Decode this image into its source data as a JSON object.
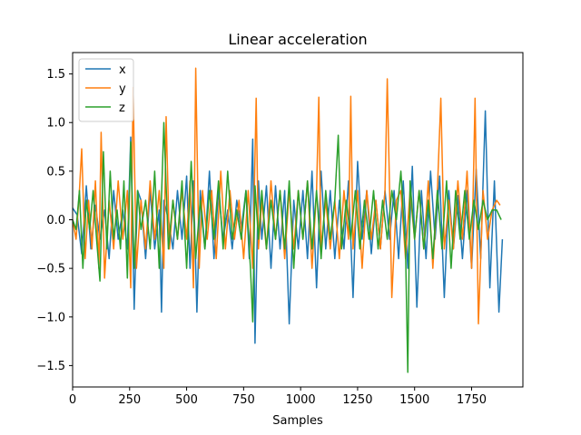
{
  "chart_data": {
    "type": "line",
    "title": "Linear acceleration",
    "xlabel": "Samples",
    "ylabel": "",
    "xlim": [
      0,
      1975
    ],
    "ylim": [
      -1.72,
      1.72
    ],
    "xticks": [
      0,
      250,
      500,
      750,
      1000,
      1250,
      1500,
      1750
    ],
    "yticks": [
      -1.5,
      -1.0,
      -0.5,
      0.0,
      0.5,
      1.0,
      1.5
    ],
    "xtick_labels": [
      "0",
      "250",
      "500",
      "750",
      "1000",
      "1250",
      "1500",
      "1750"
    ],
    "ytick_labels": [
      "−1.5",
      "−1.0",
      "−0.5",
      "0.0",
      "0.5",
      "1.0",
      "1.5"
    ],
    "grid": false,
    "legend_position": "upper left",
    "series": [
      {
        "name": "x",
        "color": "#1f77b4",
        "x": [
          0,
          20,
          40,
          60,
          80,
          100,
          120,
          140,
          160,
          180,
          200,
          220,
          240,
          255,
          270,
          285,
          300,
          320,
          340,
          360,
          380,
          390,
          400,
          420,
          440,
          460,
          480,
          500,
          515,
          530,
          545,
          560,
          580,
          600,
          620,
          640,
          660,
          680,
          700,
          720,
          740,
          760,
          775,
          790,
          800,
          815,
          830,
          850,
          870,
          890,
          910,
          930,
          950,
          970,
          990,
          1010,
          1030,
          1050,
          1070,
          1090,
          1110,
          1130,
          1150,
          1170,
          1190,
          1210,
          1230,
          1250,
          1270,
          1290,
          1310,
          1330,
          1350,
          1370,
          1390,
          1410,
          1430,
          1450,
          1470,
          1490,
          1510,
          1530,
          1550,
          1570,
          1590,
          1610,
          1630,
          1650,
          1670,
          1690,
          1710,
          1730,
          1750,
          1770,
          1790,
          1810,
          1830,
          1850,
          1870,
          1885
        ],
        "y": [
          0.12,
          0.05,
          -0.35,
          0.35,
          -0.3,
          0.15,
          -0.2,
          0.1,
          -0.4,
          0.3,
          -0.2,
          0.1,
          -0.3,
          0.85,
          -0.92,
          0.3,
          0.2,
          -0.4,
          0.3,
          -0.3,
          0.1,
          -0.95,
          0.2,
          0.0,
          -0.3,
          0.3,
          -0.2,
          0.45,
          -0.5,
          0.4,
          -0.95,
          0.3,
          -0.3,
          0.5,
          -0.4,
          0.3,
          -0.2,
          0.1,
          -0.3,
          0.2,
          -0.1,
          0.3,
          -0.4,
          0.83,
          -1.27,
          0.4,
          -0.2,
          0.35,
          -0.5,
          0.35,
          -0.3,
          0.3,
          -1.07,
          0.2,
          -0.3,
          0.3,
          -0.4,
          0.5,
          -0.7,
          0.5,
          -0.3,
          0.3,
          -0.4,
          0.2,
          -0.3,
          0.4,
          -0.8,
          0.6,
          -0.2,
          0.3,
          -0.35,
          0.2,
          -0.3,
          0.3,
          -0.2,
          0.3,
          -0.4,
          0.4,
          -0.5,
          0.55,
          -0.9,
          0.3,
          -0.4,
          0.5,
          -0.2,
          0.45,
          -0.8,
          0.3,
          -0.3,
          0.25,
          -0.4,
          0.3,
          -0.5,
          0.52,
          -0.4,
          1.12,
          -0.7,
          0.4,
          -0.95,
          -0.2
        ]
      },
      {
        "name": "y",
        "color": "#ff7f0e",
        "x": [
          0,
          15,
          30,
          40,
          55,
          70,
          85,
          100,
          115,
          125,
          140,
          160,
          180,
          200,
          220,
          240,
          255,
          265,
          280,
          300,
          320,
          340,
          360,
          380,
          400,
          410,
          425,
          440,
          460,
          480,
          500,
          515,
          530,
          540,
          555,
          570,
          590,
          610,
          630,
          650,
          670,
          690,
          710,
          730,
          750,
          770,
          790,
          805,
          815,
          830,
          850,
          870,
          890,
          910,
          930,
          950,
          970,
          990,
          1010,
          1030,
          1050,
          1070,
          1080,
          1090,
          1110,
          1130,
          1150,
          1170,
          1190,
          1210,
          1220,
          1230,
          1250,
          1270,
          1290,
          1310,
          1330,
          1350,
          1370,
          1380,
          1400,
          1420,
          1440,
          1460,
          1480,
          1500,
          1520,
          1540,
          1560,
          1580,
          1600,
          1615,
          1630,
          1650,
          1670,
          1690,
          1710,
          1730,
          1750,
          1765,
          1780,
          1800,
          1820,
          1840,
          1860,
          1875
        ],
        "y": [
          0.0,
          -0.2,
          0.3,
          0.73,
          -0.4,
          0.2,
          -0.3,
          0.4,
          -0.5,
          0.9,
          -0.6,
          0.2,
          -0.3,
          0.4,
          -0.2,
          0.3,
          -0.7,
          1.36,
          -0.5,
          0.2,
          -0.3,
          0.4,
          -0.2,
          0.3,
          -0.5,
          1.06,
          -0.3,
          0.2,
          -0.2,
          0.3,
          -0.2,
          0.4,
          -0.7,
          1.56,
          -0.5,
          0.3,
          -0.2,
          0.3,
          -0.4,
          0.5,
          -0.3,
          0.3,
          -0.2,
          0.2,
          -0.4,
          0.3,
          -0.5,
          1.25,
          -0.3,
          0.2,
          -0.3,
          0.4,
          -0.2,
          0.3,
          -0.4,
          0.3,
          -0.3,
          0.3,
          -0.2,
          0.4,
          -0.5,
          0.3,
          1.26,
          -0.3,
          0.2,
          -0.3,
          0.2,
          -0.4,
          0.3,
          -0.2,
          1.27,
          -0.3,
          0.3,
          -0.5,
          0.3,
          -0.2,
          0.2,
          -0.3,
          0.3,
          1.45,
          -0.8,
          0.2,
          0.3,
          -0.4,
          0.3,
          -0.2,
          0.3,
          -0.3,
          0.4,
          -0.5,
          0.3,
          1.25,
          -0.3,
          0.2,
          -0.3,
          0.4,
          -0.2,
          0.5,
          -0.5,
          1.25,
          -1.07,
          0.3,
          -0.2,
          0.1,
          0.2,
          0.15
        ]
      },
      {
        "name": "z",
        "color": "#2ca02c",
        "x": [
          0,
          15,
          30,
          45,
          60,
          75,
          90,
          105,
          120,
          135,
          150,
          165,
          180,
          195,
          210,
          225,
          240,
          255,
          270,
          285,
          300,
          320,
          340,
          360,
          380,
          400,
          420,
          440,
          460,
          480,
          500,
          520,
          540,
          560,
          580,
          600,
          620,
          640,
          660,
          680,
          700,
          720,
          740,
          760,
          780,
          790,
          800,
          815,
          830,
          850,
          870,
          890,
          910,
          930,
          950,
          970,
          990,
          1010,
          1030,
          1050,
          1070,
          1090,
          1110,
          1130,
          1150,
          1165,
          1180,
          1200,
          1220,
          1240,
          1260,
          1280,
          1300,
          1320,
          1340,
          1360,
          1380,
          1400,
          1420,
          1440,
          1460,
          1470,
          1480,
          1500,
          1520,
          1540,
          1560,
          1580,
          1600,
          1620,
          1640,
          1660,
          1680,
          1700,
          1720,
          1740,
          1760,
          1780,
          1800,
          1820,
          1840,
          1860,
          1880
        ],
        "y": [
          0.0,
          -0.1,
          0.3,
          -0.5,
          0.2,
          -0.1,
          0.3,
          -0.2,
          -0.63,
          0.7,
          -0.3,
          0.5,
          -0.2,
          0.1,
          -0.3,
          0.4,
          -0.6,
          0.8,
          -0.5,
          0.3,
          -0.1,
          0.2,
          -0.3,
          0.5,
          -0.5,
          1.0,
          -0.3,
          0.2,
          -0.2,
          0.4,
          -0.5,
          0.6,
          -0.4,
          0.2,
          -0.3,
          0.3,
          -0.2,
          0.4,
          -0.3,
          0.5,
          -0.2,
          0.1,
          -0.2,
          0.3,
          -0.5,
          -1.05,
          0.35,
          -0.2,
          0.3,
          -0.3,
          0.2,
          -0.2,
          0.3,
          -0.3,
          0.4,
          -0.5,
          0.3,
          -0.2,
          0.4,
          -0.3,
          0.3,
          -0.4,
          0.3,
          -0.2,
          0.2,
          0.87,
          -0.3,
          0.2,
          -0.2,
          0.3,
          -0.3,
          0.2,
          -0.2,
          0.3,
          -0.3,
          0.2,
          -0.2,
          0.3,
          0.0,
          0.5,
          -0.3,
          -1.57,
          0.4,
          -0.2,
          0.3,
          -0.3,
          0.2,
          -0.4,
          0.3,
          -0.3,
          0.4,
          -0.5,
          0.3,
          -0.2,
          0.3,
          -0.2,
          0.2,
          -0.1,
          0.2,
          0.0,
          0.1,
          0.1,
          0.0
        ]
      }
    ]
  }
}
